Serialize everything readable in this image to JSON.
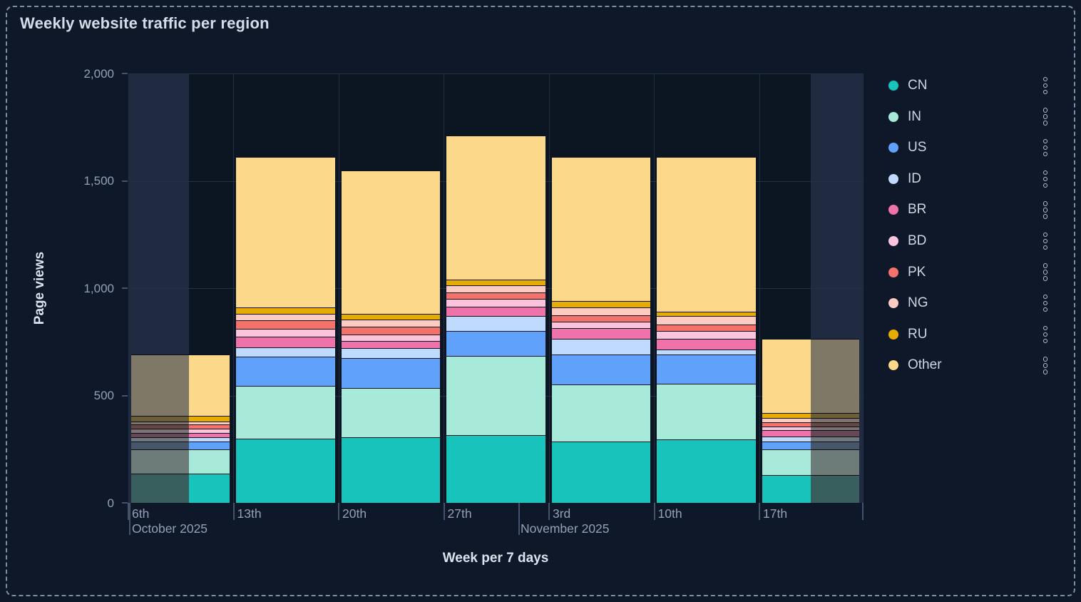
{
  "title": "Weekly website traffic per region",
  "y_axis": {
    "title": "Page views",
    "ticks": [
      {
        "value": 2000,
        "label": "2,000"
      },
      {
        "value": 1500,
        "label": "1,500"
      },
      {
        "value": 1000,
        "label": "1,000"
      },
      {
        "value": 500,
        "label": "500"
      },
      {
        "value": 0,
        "label": "0"
      }
    ]
  },
  "x_axis": {
    "title": "Week per 7 days",
    "day_labels": [
      "6th",
      "13th",
      "20th",
      "27th",
      "3rd",
      "10th",
      "17th"
    ],
    "months": [
      {
        "text": "October 2025"
      },
      {
        "text": "November 2025"
      }
    ]
  },
  "legend": {
    "items": [
      {
        "label": "CN",
        "color": "#18c3bc"
      },
      {
        "label": "IN",
        "color": "#a8ead9"
      },
      {
        "label": "US",
        "color": "#60a1fb"
      },
      {
        "label": "ID",
        "color": "#c0dafd"
      },
      {
        "label": "BR",
        "color": "#ef72aa"
      },
      {
        "label": "BD",
        "color": "#fac5dc"
      },
      {
        "label": "PK",
        "color": "#f4726a"
      },
      {
        "label": "NG",
        "color": "#fcccc3"
      },
      {
        "label": "RU",
        "color": "#e6ac04"
      },
      {
        "label": "Other",
        "color": "#fcd98a"
      }
    ]
  },
  "chart_data": {
    "type": "bar",
    "stacked": true,
    "title": "Weekly website traffic per region",
    "xlabel": "Week per 7 days",
    "ylabel": "Page views",
    "ylim": [
      0,
      2000
    ],
    "grid": true,
    "legend_position": "right",
    "categories": [
      "6th October 2025",
      "13th October 2025",
      "20th October 2025",
      "27th October 2025",
      "3rd November 2025",
      "10th November 2025",
      "17th November 2025"
    ],
    "series": [
      {
        "name": "CN",
        "color": "#18c3bc",
        "values": [
          135,
          300,
          305,
          315,
          285,
          295,
          130
        ]
      },
      {
        "name": "IN",
        "color": "#a8ead9",
        "values": [
          115,
          245,
          230,
          370,
          265,
          260,
          120
        ]
      },
      {
        "name": "US",
        "color": "#60a1fb",
        "values": [
          35,
          135,
          140,
          115,
          140,
          135,
          35
        ]
      },
      {
        "name": "ID",
        "color": "#c0dafd",
        "values": [
          20,
          45,
          45,
          70,
          75,
          25,
          25
        ]
      },
      {
        "name": "BR",
        "color": "#ef72aa",
        "values": [
          20,
          50,
          35,
          45,
          50,
          50,
          30
        ]
      },
      {
        "name": "BD",
        "color": "#fac5dc",
        "values": [
          20,
          35,
          30,
          35,
          30,
          35,
          15
        ]
      },
      {
        "name": "PK",
        "color": "#f4726a",
        "values": [
          20,
          40,
          35,
          30,
          30,
          30,
          20
        ]
      },
      {
        "name": "NG",
        "color": "#fcccc3",
        "values": [
          15,
          30,
          35,
          35,
          35,
          40,
          20
        ]
      },
      {
        "name": "RU",
        "color": "#e6ac04",
        "values": [
          25,
          30,
          25,
          25,
          30,
          20,
          25
        ]
      },
      {
        "name": "Other",
        "color": "#fcd98a",
        "values": [
          285,
          700,
          670,
          670,
          670,
          720,
          345
        ]
      }
    ],
    "totals": [
      690,
      1610,
      1550,
      1710,
      1610,
      1610,
      765
    ],
    "notes": "Left portion of first bar (6th Oct) and right portion of last bar (17th Nov) are rendered dimmed (outside selected range)."
  }
}
